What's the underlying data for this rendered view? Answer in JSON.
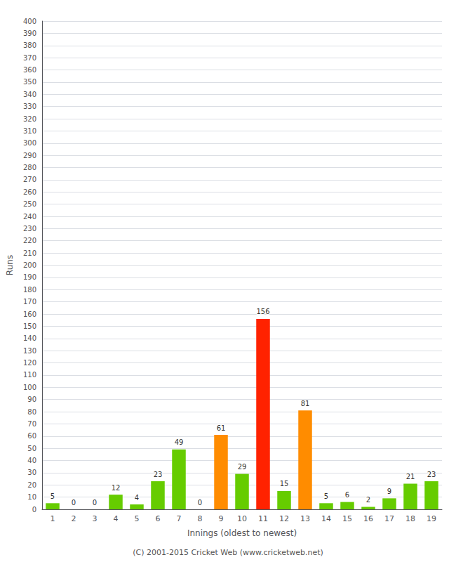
{
  "chart_data": {
    "type": "bar",
    "xlabel": "Innings (oldest to newest)",
    "ylabel": "Runs",
    "categories": [
      1,
      2,
      3,
      4,
      5,
      6,
      7,
      8,
      9,
      10,
      11,
      12,
      13,
      14,
      15,
      16,
      17,
      18,
      19
    ],
    "values": [
      5,
      0,
      0,
      12,
      4,
      23,
      49,
      0,
      61,
      29,
      156,
      15,
      81,
      5,
      6,
      2,
      9,
      21,
      23
    ],
    "colors": [
      "#66cc00",
      "#66cc00",
      "#66cc00",
      "#66cc00",
      "#66cc00",
      "#66cc00",
      "#66cc00",
      "#66cc00",
      "#ff8c00",
      "#66cc00",
      "#ff2200",
      "#66cc00",
      "#ff8c00",
      "#66cc00",
      "#66cc00",
      "#66cc00",
      "#66cc00",
      "#66cc00",
      "#66cc00"
    ],
    "ylim": [
      0,
      400
    ],
    "yticks": [
      0,
      10,
      20,
      30,
      40,
      50,
      60,
      70,
      80,
      90,
      100,
      110,
      120,
      130,
      140,
      150,
      160,
      170,
      180,
      190,
      200,
      210,
      220,
      230,
      240,
      250,
      260,
      270,
      280,
      290,
      300,
      310,
      320,
      330,
      340,
      350,
      360,
      370,
      380,
      390,
      400
    ],
    "grid": true,
    "data_labels": true,
    "annotations": [
      "(C) 2001-2015 Cricket Web (www.cricketweb.net)"
    ]
  }
}
